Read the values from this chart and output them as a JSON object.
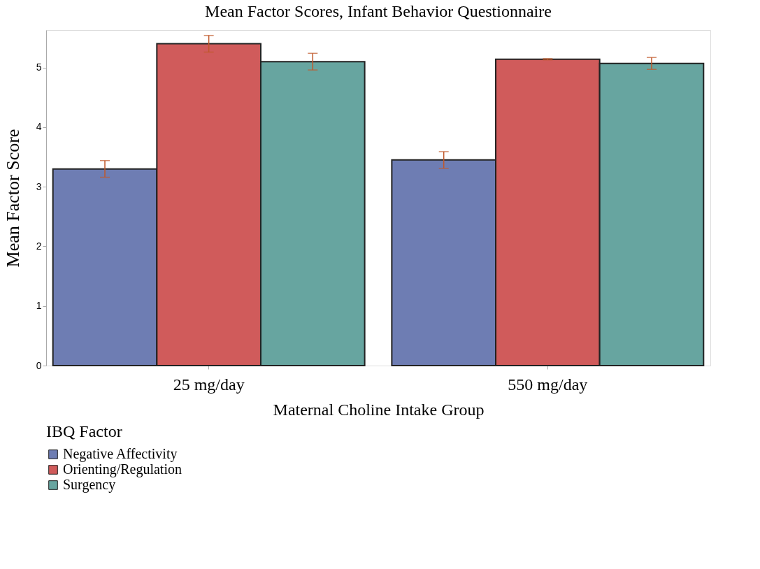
{
  "chart_data": {
    "type": "bar",
    "title": "Mean Factor Scores, Infant Behavior Questionnaire",
    "xlabel": "Maternal Choline Intake Group",
    "ylabel": "Mean Factor Score",
    "legend_title": "IBQ Factor",
    "categories": [
      "25 mg/day",
      "550 mg/day"
    ],
    "series": [
      {
        "name": "Negative Affectivity",
        "color": "#6e7db3",
        "values": [
          3.3,
          3.45
        ],
        "errors": [
          0.14,
          0.14
        ]
      },
      {
        "name": "Orienting/Regulation",
        "color": "#d05b5b",
        "values": [
          5.4,
          5.14
        ],
        "errors": [
          0.14,
          0.01
        ]
      },
      {
        "name": "Surgency",
        "color": "#67a5a0",
        "values": [
          5.1,
          5.07
        ],
        "errors": [
          0.14,
          0.1
        ]
      }
    ],
    "ylim": [
      0,
      5.63
    ],
    "yticks": [
      0,
      1,
      2,
      3,
      4,
      5
    ],
    "grid": false,
    "legend": "bottom left"
  }
}
